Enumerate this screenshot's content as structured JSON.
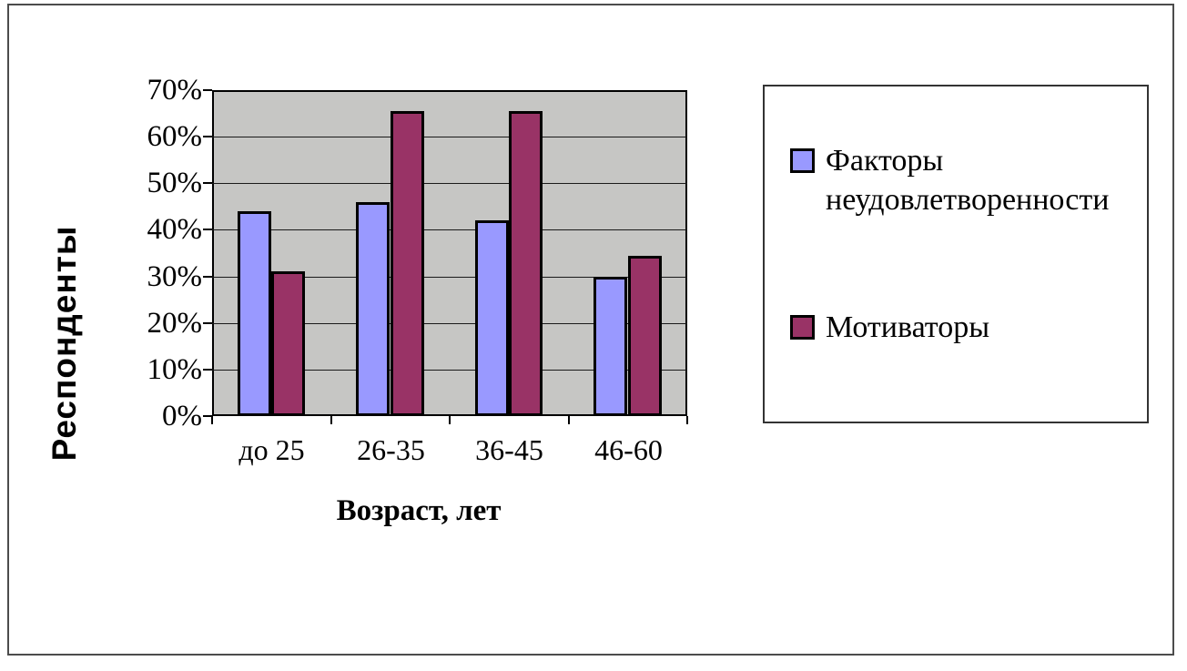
{
  "chart_data": {
    "type": "bar",
    "title": "",
    "categories": [
      "до 25",
      "26-35",
      "36-45",
      "46-60"
    ],
    "series": [
      {
        "name": "Факторы неудовлетворенности",
        "color": "#9999FF",
        "values": [
          44,
          46,
          42,
          30
        ]
      },
      {
        "name": "Мотиваторы",
        "color": "#993366",
        "values": [
          31,
          65.5,
          65.5,
          34.5
        ]
      }
    ],
    "xlabel": "Возраст, лет",
    "ylabel": "Респонденты",
    "ylim": [
      0,
      70
    ],
    "ytick_step": 10,
    "ytick_labels": [
      "0%",
      "10%",
      "20%",
      "30%",
      "40%",
      "50%",
      "60%",
      "70%"
    ],
    "grid": true,
    "legend_position": "right",
    "plot_bg_color": "#C6C6C4",
    "gridline_color": "#1a1a1a",
    "bar_border_color": "#000000"
  }
}
